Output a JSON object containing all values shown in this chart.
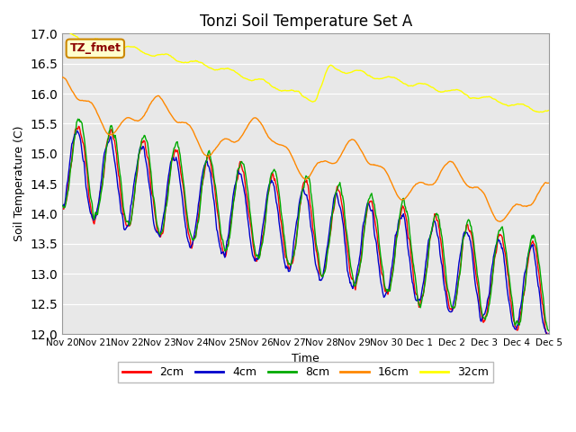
{
  "title": "Tonzi Soil Temperature Set A",
  "xlabel": "Time",
  "ylabel": "Soil Temperature (C)",
  "ylim": [
    12.0,
    17.0
  ],
  "yticks": [
    12.0,
    12.5,
    13.0,
    13.5,
    14.0,
    14.5,
    15.0,
    15.5,
    16.0,
    16.5,
    17.0
  ],
  "xtick_labels": [
    "Nov 20",
    "Nov 21",
    "Nov 22",
    "Nov 23",
    "Nov 24",
    "Nov 25",
    "Nov 26",
    "Nov 27",
    "Nov 28",
    "Nov 29",
    "Nov 30",
    "Dec 1",
    "Dec 2",
    "Dec 3",
    "Dec 4",
    "Dec 5"
  ],
  "colors": {
    "2cm": "#ff0000",
    "4cm": "#0000cc",
    "8cm": "#00aa00",
    "16cm": "#ff8800",
    "32cm": "#ffff00"
  },
  "bg_color": "#e8e8e8",
  "legend_label": "TZ_fmet",
  "legend_bg": "#ffffcc",
  "legend_border": "#cc8800"
}
